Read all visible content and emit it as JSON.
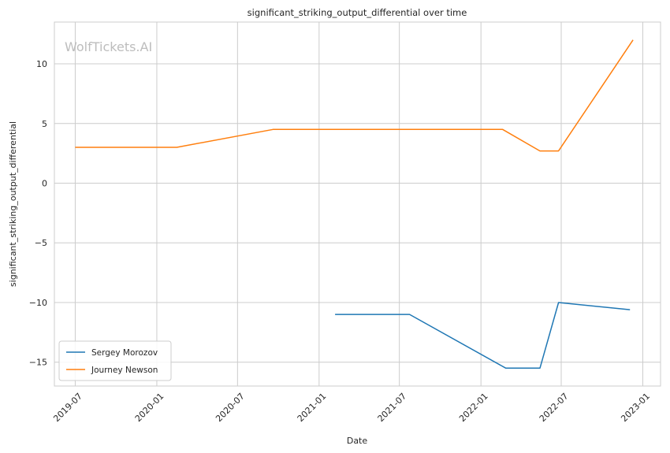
{
  "chart_data": {
    "type": "line",
    "title": "significant_striking_output_differential over time",
    "xlabel": "Date",
    "ylabel": "significant_striking_output_differential",
    "watermark": "WolfTickets.AI",
    "x_axis": "date",
    "xlim": [
      "2019-05-15",
      "2023-02-10"
    ],
    "ylim": [
      -17,
      13.5
    ],
    "x_ticks": [
      {
        "date": "2019-07-01",
        "label": "2019-07"
      },
      {
        "date": "2020-01-01",
        "label": "2020-01"
      },
      {
        "date": "2020-07-01",
        "label": "2020-07"
      },
      {
        "date": "2021-01-01",
        "label": "2021-01"
      },
      {
        "date": "2021-07-01",
        "label": "2021-07"
      },
      {
        "date": "2022-01-01",
        "label": "2022-01"
      },
      {
        "date": "2022-07-01",
        "label": "2022-07"
      },
      {
        "date": "2023-01-01",
        "label": "2023-01"
      }
    ],
    "y_ticks": [
      {
        "value": 10,
        "label": "10"
      },
      {
        "value": 5,
        "label": "5"
      },
      {
        "value": 0,
        "label": "0"
      },
      {
        "value": -5,
        "label": "−5"
      },
      {
        "value": -10,
        "label": "−10"
      },
      {
        "value": -15,
        "label": "−15"
      }
    ],
    "grid": true,
    "legend_position": "lower-left",
    "series": [
      {
        "name": "Sergey Morozov",
        "color": "#1f77b4",
        "points": [
          {
            "x": "2021-02-06",
            "y": -11.0
          },
          {
            "x": "2021-07-24",
            "y": -11.0
          },
          {
            "x": "2022-02-26",
            "y": -15.5
          },
          {
            "x": "2022-05-14",
            "y": -15.5
          },
          {
            "x": "2022-06-25",
            "y": -10.0
          },
          {
            "x": "2022-12-03",
            "y": -10.6
          }
        ]
      },
      {
        "name": "Journey Newson",
        "color": "#ff7f0e",
        "points": [
          {
            "x": "2019-07-01",
            "y": 3.0
          },
          {
            "x": "2020-02-15",
            "y": 3.0
          },
          {
            "x": "2020-09-19",
            "y": 4.5
          },
          {
            "x": "2022-02-19",
            "y": 4.5
          },
          {
            "x": "2022-05-14",
            "y": 2.7
          },
          {
            "x": "2022-06-25",
            "y": 2.7
          },
          {
            "x": "2022-12-10",
            "y": 12.0
          }
        ]
      }
    ]
  }
}
